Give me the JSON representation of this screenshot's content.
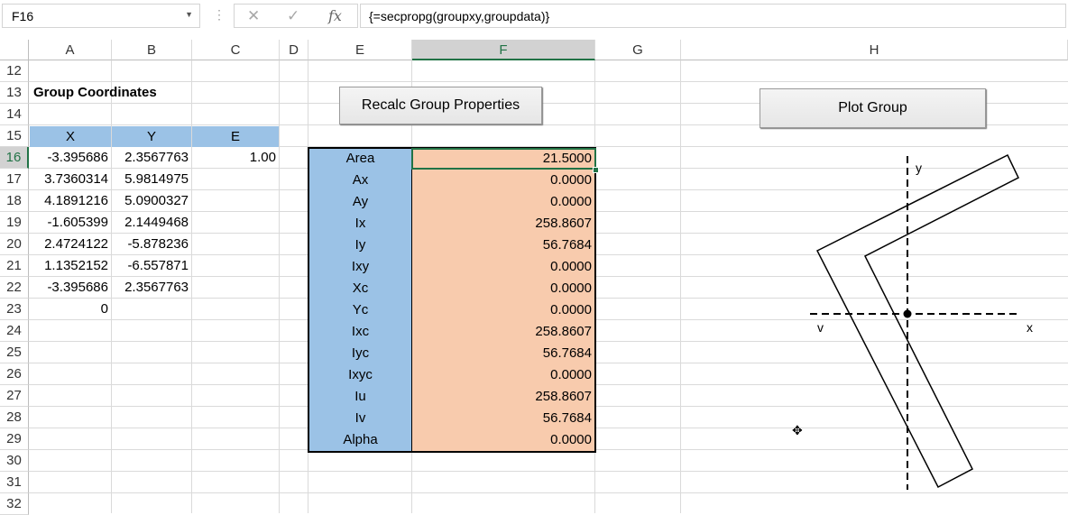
{
  "formula_bar": {
    "name_box": "F16",
    "cancel_icon": "✕",
    "enter_icon": "✓",
    "fx_label": "fx",
    "formula": "{=secpropg(groupxy,groupdata)}"
  },
  "columns": [
    "A",
    "B",
    "C",
    "D",
    "E",
    "F",
    "G",
    "H"
  ],
  "rows": [
    "12",
    "13",
    "14",
    "15",
    "16",
    "17",
    "18",
    "19",
    "20",
    "21",
    "22",
    "23",
    "24",
    "25",
    "26",
    "27",
    "28",
    "29",
    "30",
    "31",
    "32"
  ],
  "title": "Group Coordinates",
  "coords_header": [
    "X",
    "Y",
    "E"
  ],
  "coords": [
    {
      "x": "-3.395686",
      "y": "2.3567763",
      "e": "1.00"
    },
    {
      "x": "3.7360314",
      "y": "5.9814975",
      "e": ""
    },
    {
      "x": "4.1891216",
      "y": "5.0900327",
      "e": ""
    },
    {
      "x": "-1.605399",
      "y": "2.1449468",
      "e": ""
    },
    {
      "x": "2.4724122",
      "y": "-5.878236",
      "e": ""
    },
    {
      "x": "1.1352152",
      "y": "-6.557871",
      "e": ""
    },
    {
      "x": "-3.395686",
      "y": "2.3567763",
      "e": ""
    },
    {
      "x": "0",
      "y": "",
      "e": ""
    }
  ],
  "properties": [
    {
      "name": "Area",
      "value": "21.5000"
    },
    {
      "name": "Ax",
      "value": "0.0000"
    },
    {
      "name": "Ay",
      "value": "0.0000"
    },
    {
      "name": "Ix",
      "value": "258.8607"
    },
    {
      "name": "Iy",
      "value": "56.7684"
    },
    {
      "name": "Ixy",
      "value": "0.0000"
    },
    {
      "name": "Xc",
      "value": "0.0000"
    },
    {
      "name": "Yc",
      "value": "0.0000"
    },
    {
      "name": "Ixc",
      "value": "258.8607"
    },
    {
      "name": "Iyc",
      "value": "56.7684"
    },
    {
      "name": "Ixyc",
      "value": "0.0000"
    },
    {
      "name": "Iu",
      "value": "258.8607"
    },
    {
      "name": "Iv",
      "value": "56.7684"
    },
    {
      "name": "Alpha",
      "value": "0.0000"
    }
  ],
  "buttons": {
    "recalc": "Recalc Group Properties",
    "plot": "Plot Group"
  },
  "plot": {
    "label_y": "y",
    "label_x": "x",
    "label_v": "v"
  },
  "colors": {
    "header_blue": "#9bc2e6",
    "value_peach": "#f8cbad",
    "excel_green": "#217346"
  }
}
